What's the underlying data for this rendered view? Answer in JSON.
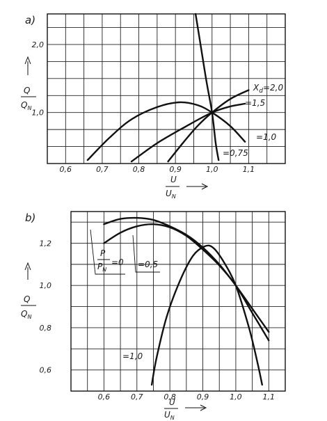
{
  "chart_data": [
    {
      "panel": "a)",
      "type": "line",
      "xlim": [
        0.55,
        1.2
      ],
      "ylim": [
        0.25,
        2.45
      ],
      "x_ticks": [
        "0,6",
        "0,7",
        "0,8",
        "0,9",
        "1,0",
        "1,1"
      ],
      "x_tick_values": [
        0.6,
        0.7,
        0.8,
        0.9,
        1.0,
        1.1
      ],
      "y_ticks": [
        "1,0",
        "2,0"
      ],
      "y_tick_values": [
        1.0,
        2.0
      ],
      "xlabel": {
        "num": "U",
        "den": "U",
        "den_sub": "N"
      },
      "ylabel": {
        "num": "Q",
        "den": "Q",
        "den_sub": "N"
      },
      "grid": true,
      "series": [
        {
          "label": "X",
          "label_sub": "d",
          "label_value": "=2,0",
          "points": [
            [
              0.88,
              0.28
            ],
            [
              0.92,
              0.55
            ],
            [
              0.96,
              0.8
            ],
            [
              1.0,
              1.0
            ],
            [
              1.05,
              1.2
            ],
            [
              1.1,
              1.33
            ]
          ]
        },
        {
          "label": "=1,5",
          "points": [
            [
              0.78,
              0.28
            ],
            [
              0.85,
              0.55
            ],
            [
              0.93,
              0.8
            ],
            [
              1.0,
              1.0
            ],
            [
              1.05,
              1.09
            ],
            [
              1.09,
              1.13
            ]
          ]
        },
        {
          "label": "=1,0",
          "points": [
            [
              0.66,
              0.3
            ],
            [
              0.72,
              0.63
            ],
            [
              0.78,
              0.9
            ],
            [
              0.85,
              1.08
            ],
            [
              0.91,
              1.15
            ],
            [
              0.96,
              1.11
            ],
            [
              1.0,
              1.0
            ],
            [
              1.05,
              0.8
            ],
            [
              1.09,
              0.57
            ]
          ]
        },
        {
          "label": "=0,75",
          "points": [
            [
              0.955,
              2.45
            ],
            [
              0.97,
              1.95
            ],
            [
              0.985,
              1.45
            ],
            [
              1.0,
              1.0
            ],
            [
              1.01,
              0.55
            ],
            [
              1.018,
              0.3
            ]
          ]
        }
      ]
    },
    {
      "panel": "b)",
      "type": "line",
      "xlim": [
        0.5,
        1.15
      ],
      "ylim": [
        0.5,
        1.35
      ],
      "x_ticks": [
        "0,6",
        "0,7",
        "0,8",
        "0,9",
        "1,0",
        "1,1"
      ],
      "x_tick_values": [
        0.6,
        0.7,
        0.8,
        0.9,
        1.0,
        1.1
      ],
      "y_ticks": [
        "0,6",
        "0,8",
        "1,0",
        "1,2"
      ],
      "y_tick_values": [
        0.6,
        0.8,
        1.0,
        1.2
      ],
      "xlabel": {
        "num": "U",
        "den": "U",
        "den_sub": "N"
      },
      "ylabel": {
        "num": "Q",
        "den": "Q",
        "den_sub": "N"
      },
      "grid": true,
      "series": [
        {
          "label": {
            "num": "P",
            "den": "P",
            "den_sub": "N",
            "value": "=0"
          },
          "points": [
            [
              0.6,
              1.29
            ],
            [
              0.65,
              1.315
            ],
            [
              0.7,
              1.32
            ],
            [
              0.75,
              1.31
            ],
            [
              0.8,
              1.28
            ],
            [
              0.85,
              1.24
            ],
            [
              0.9,
              1.18
            ],
            [
              0.95,
              1.1
            ],
            [
              1.0,
              1.0
            ],
            [
              1.05,
              0.89
            ],
            [
              1.1,
              0.78
            ]
          ]
        },
        {
          "label": "=0,5",
          "points": [
            [
              0.6,
              1.2
            ],
            [
              0.65,
              1.25
            ],
            [
              0.7,
              1.28
            ],
            [
              0.75,
              1.29
            ],
            [
              0.8,
              1.275
            ],
            [
              0.85,
              1.235
            ],
            [
              0.9,
              1.17
            ],
            [
              0.95,
              1.095
            ],
            [
              1.0,
              1.0
            ],
            [
              1.05,
              0.87
            ],
            [
              1.1,
              0.74
            ]
          ]
        },
        {
          "label": "=1,0",
          "points": [
            [
              0.745,
              0.53
            ],
            [
              0.76,
              0.66
            ],
            [
              0.79,
              0.85
            ],
            [
              0.83,
              1.02
            ],
            [
              0.87,
              1.14
            ],
            [
              0.905,
              1.185
            ],
            [
              0.93,
              1.18
            ],
            [
              0.96,
              1.12
            ],
            [
              1.0,
              1.0
            ],
            [
              1.04,
              0.8
            ],
            [
              1.065,
              0.64
            ],
            [
              1.08,
              0.53
            ]
          ]
        }
      ]
    }
  ]
}
